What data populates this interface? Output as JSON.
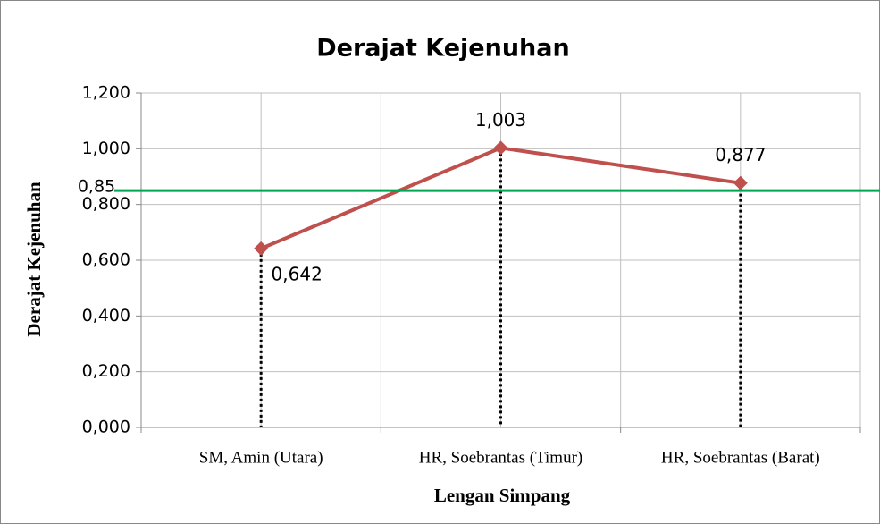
{
  "chart_data": {
    "type": "line",
    "title": "Derajat Kejenuhan",
    "x_label": "Lengan Simpang",
    "y_label": "Derajat Kejenuhan",
    "categories": [
      "SM, Amin (Utara)",
      "HR, Soebrantas (Timur)",
      "HR, Soebrantas (Barat)"
    ],
    "series": [
      {
        "name": "Derajat Kejenuhan",
        "color": "#c0504d",
        "values": [
          0.642,
          1.003,
          0.877
        ],
        "value_labels": [
          "0,642",
          "1,003",
          "0,877"
        ]
      }
    ],
    "ylim": [
      0,
      1.2
    ],
    "yticks": [
      {
        "value": 0,
        "label": "0,000"
      },
      {
        "value": 0.2,
        "label": "0,200"
      },
      {
        "value": 0.4,
        "label": "0,400"
      },
      {
        "value": 0.6,
        "label": "0,600"
      },
      {
        "value": 0.8,
        "label": "0,800"
      },
      {
        "value": 1.0,
        "label": "1,000"
      },
      {
        "value": 1.2,
        "label": "1,200"
      }
    ],
    "grid": true,
    "reference_line": {
      "value": 0.85,
      "label": "0,85",
      "color": "#00a651"
    }
  }
}
